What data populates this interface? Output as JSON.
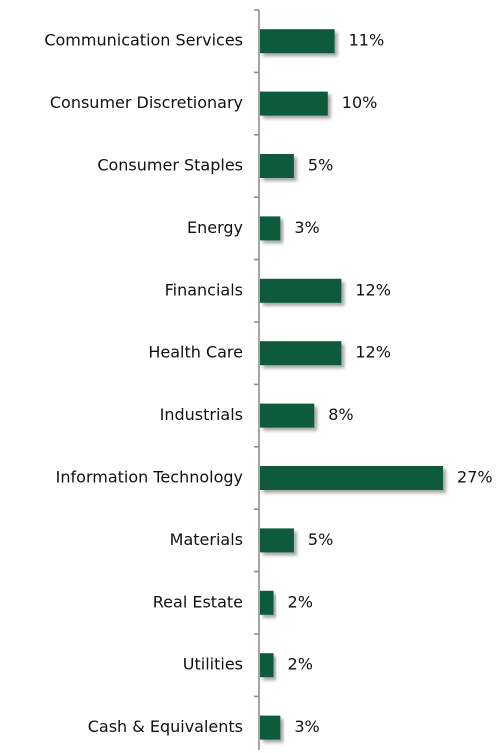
{
  "chart_data": {
    "type": "hbar",
    "categories": [
      "Communication Services",
      "Consumer Discretionary",
      "Consumer Staples",
      "Energy",
      "Financials",
      "Health Care",
      "Industrials",
      "Information Technology",
      "Materials",
      "Real Estate",
      "Utilities",
      "Cash & Equivalents"
    ],
    "values": [
      11,
      10,
      5,
      3,
      12,
      12,
      8,
      27,
      5,
      2,
      2,
      3
    ],
    "value_labels": [
      "11%",
      "10%",
      "5%",
      "3%",
      "12%",
      "12%",
      "8%",
      "27%",
      "5%",
      "2%",
      "2%",
      "3%"
    ],
    "color": "#0d5a3c"
  }
}
